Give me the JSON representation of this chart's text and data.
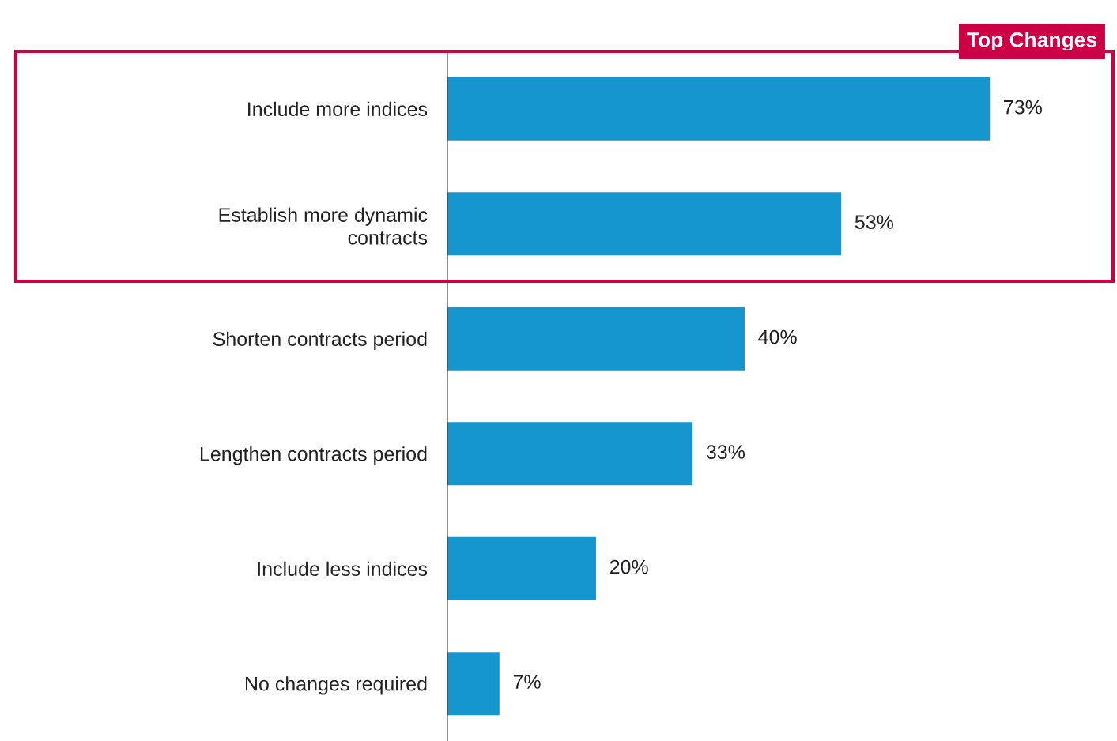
{
  "chart_data": {
    "type": "bar",
    "orientation": "horizontal",
    "categories": [
      "Include more indices",
      "Establish more dynamic\ncontracts",
      "Shorten contracts period",
      "Lengthen contracts period",
      "Include less indices",
      "No changes required"
    ],
    "values": [
      73,
      53,
      40,
      33,
      20,
      7
    ],
    "value_labels": [
      "73%",
      "53%",
      "40%",
      "33%",
      "20%",
      "7%"
    ],
    "color": "#1696cf",
    "annotations": [
      "Top Changes"
    ],
    "grid": false,
    "tick_labels": "y"
  }
}
